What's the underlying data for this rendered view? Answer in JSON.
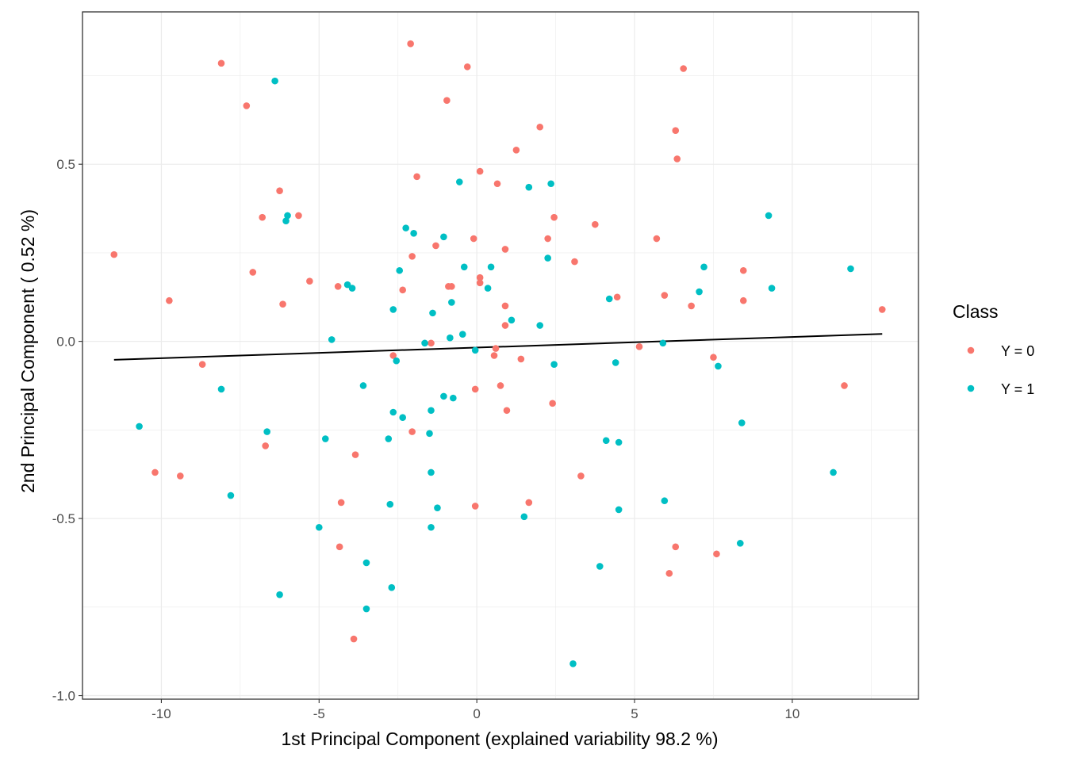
{
  "chart_data": {
    "type": "scatter",
    "title": "",
    "xlabel": "1st Principal Component (explained variability 98.2 %)",
    "ylabel": "2nd Principal Component ( 0.52 %)",
    "xlim": [
      -12.5,
      14.0
    ],
    "ylim": [
      -1.01,
      0.93
    ],
    "x_ticks": [
      -10,
      -5,
      0,
      5,
      10
    ],
    "x_tick_labels": [
      "-10",
      "-5",
      "0",
      "5",
      "10"
    ],
    "y_ticks": [
      -1.0,
      -0.5,
      0.0,
      0.5
    ],
    "y_tick_labels": [
      "-1.0",
      "-0.5",
      "0.0",
      "0.5"
    ],
    "grid": true,
    "legend": {
      "title": "Class",
      "position": "right"
    },
    "series": [
      {
        "name": "Y = 0",
        "color": "#F8766D",
        "points": [
          [
            -11.5,
            0.245
          ],
          [
            -10.2,
            -0.37
          ],
          [
            -9.75,
            0.115
          ],
          [
            -9.4,
            -0.38
          ],
          [
            -8.7,
            -0.065
          ],
          [
            -8.1,
            0.785
          ],
          [
            -7.3,
            0.665
          ],
          [
            -7.1,
            0.195
          ],
          [
            -6.8,
            0.35
          ],
          [
            -6.7,
            -0.295
          ],
          [
            -6.25,
            0.425
          ],
          [
            -6.15,
            0.105
          ],
          [
            -5.65,
            0.355
          ],
          [
            -5.3,
            0.17
          ],
          [
            -4.4,
            0.155
          ],
          [
            -4.35,
            -0.58
          ],
          [
            -4.3,
            -0.455
          ],
          [
            -3.85,
            -0.32
          ],
          [
            -3.9,
            -0.84
          ],
          [
            -2.65,
            -0.04
          ],
          [
            -2.35,
            0.145
          ],
          [
            -2.1,
            0.84
          ],
          [
            -2.05,
            0.24
          ],
          [
            -2.05,
            -0.255
          ],
          [
            -1.9,
            0.465
          ],
          [
            -1.45,
            -0.005
          ],
          [
            -1.3,
            0.27
          ],
          [
            -0.95,
            0.68
          ],
          [
            -0.9,
            0.155
          ],
          [
            -0.8,
            0.155
          ],
          [
            -0.3,
            0.775
          ],
          [
            -0.1,
            0.29
          ],
          [
            -0.05,
            -0.135
          ],
          [
            -0.05,
            -0.465
          ],
          [
            0.1,
            0.165
          ],
          [
            0.1,
            0.18
          ],
          [
            0.1,
            0.48
          ],
          [
            0.55,
            -0.04
          ],
          [
            0.6,
            -0.02
          ],
          [
            0.65,
            0.445
          ],
          [
            0.75,
            -0.125
          ],
          [
            0.9,
            0.045
          ],
          [
            0.9,
            0.1
          ],
          [
            0.9,
            0.26
          ],
          [
            0.95,
            -0.195
          ],
          [
            1.25,
            0.54
          ],
          [
            1.4,
            -0.05
          ],
          [
            1.65,
            -0.455
          ],
          [
            2.0,
            0.605
          ],
          [
            2.25,
            0.29
          ],
          [
            2.4,
            -0.175
          ],
          [
            2.45,
            0.35
          ],
          [
            3.1,
            0.225
          ],
          [
            3.3,
            -0.38
          ],
          [
            3.75,
            0.33
          ],
          [
            4.45,
            0.125
          ],
          [
            5.15,
            -0.015
          ],
          [
            5.7,
            0.29
          ],
          [
            5.95,
            0.13
          ],
          [
            6.1,
            -0.655
          ],
          [
            6.3,
            0.595
          ],
          [
            6.3,
            -0.58
          ],
          [
            6.35,
            0.515
          ],
          [
            6.55,
            0.77
          ],
          [
            6.8,
            0.1
          ],
          [
            7.5,
            -0.045
          ],
          [
            7.6,
            -0.6
          ],
          [
            8.45,
            0.2
          ],
          [
            8.45,
            0.115
          ],
          [
            11.65,
            -0.125
          ],
          [
            12.85,
            0.09
          ]
        ]
      },
      {
        "name": "Y = 1",
        "color": "#00BFC4",
        "points": [
          [
            -10.7,
            -0.24
          ],
          [
            -8.1,
            -0.135
          ],
          [
            -7.8,
            -0.435
          ],
          [
            -6.65,
            -0.255
          ],
          [
            -6.4,
            0.735
          ],
          [
            -6.25,
            -0.715
          ],
          [
            -6.05,
            0.34
          ],
          [
            -6.0,
            0.355
          ],
          [
            -5.0,
            -0.525
          ],
          [
            -4.8,
            -0.275
          ],
          [
            -4.6,
            0.005
          ],
          [
            -4.1,
            0.16
          ],
          [
            -3.95,
            0.15
          ],
          [
            -3.6,
            -0.125
          ],
          [
            -3.5,
            -0.625
          ],
          [
            -3.5,
            -0.755
          ],
          [
            -2.8,
            -0.275
          ],
          [
            -2.75,
            -0.46
          ],
          [
            -2.7,
            -0.695
          ],
          [
            -2.65,
            0.09
          ],
          [
            -2.65,
            -0.2
          ],
          [
            -2.55,
            -0.055
          ],
          [
            -2.45,
            0.2
          ],
          [
            -2.35,
            -0.215
          ],
          [
            -2.25,
            0.32
          ],
          [
            -2.0,
            0.305
          ],
          [
            -1.65,
            -0.005
          ],
          [
            -1.5,
            -0.26
          ],
          [
            -1.45,
            -0.195
          ],
          [
            -1.45,
            -0.37
          ],
          [
            -1.45,
            -0.525
          ],
          [
            -1.4,
            0.08
          ],
          [
            -1.25,
            -0.47
          ],
          [
            -1.05,
            0.295
          ],
          [
            -1.05,
            -0.155
          ],
          [
            -0.85,
            0.01
          ],
          [
            -0.8,
            0.11
          ],
          [
            -0.75,
            -0.16
          ],
          [
            -0.55,
            0.45
          ],
          [
            -0.45,
            0.02
          ],
          [
            -0.4,
            0.21
          ],
          [
            -0.05,
            -0.025
          ],
          [
            0.35,
            0.15
          ],
          [
            0.45,
            0.21
          ],
          [
            1.1,
            0.06
          ],
          [
            1.5,
            -0.495
          ],
          [
            1.65,
            0.435
          ],
          [
            2.0,
            0.045
          ],
          [
            2.25,
            0.235
          ],
          [
            2.35,
            0.445
          ],
          [
            2.45,
            -0.065
          ],
          [
            3.05,
            -0.91
          ],
          [
            3.9,
            -0.635
          ],
          [
            4.1,
            -0.28
          ],
          [
            4.2,
            0.12
          ],
          [
            4.4,
            -0.06
          ],
          [
            4.5,
            -0.285
          ],
          [
            4.5,
            -0.475
          ],
          [
            5.9,
            -0.005
          ],
          [
            5.95,
            -0.45
          ],
          [
            7.05,
            0.14
          ],
          [
            7.2,
            0.21
          ],
          [
            7.65,
            -0.07
          ],
          [
            8.35,
            -0.57
          ],
          [
            8.4,
            -0.23
          ],
          [
            9.25,
            0.355
          ],
          [
            9.35,
            0.15
          ],
          [
            11.3,
            -0.37
          ],
          [
            11.85,
            0.205
          ]
        ]
      }
    ],
    "trend_line": {
      "color": "#000000",
      "points": [
        [
          -11.5,
          -0.052
        ],
        [
          12.85,
          0.021
        ]
      ]
    }
  }
}
